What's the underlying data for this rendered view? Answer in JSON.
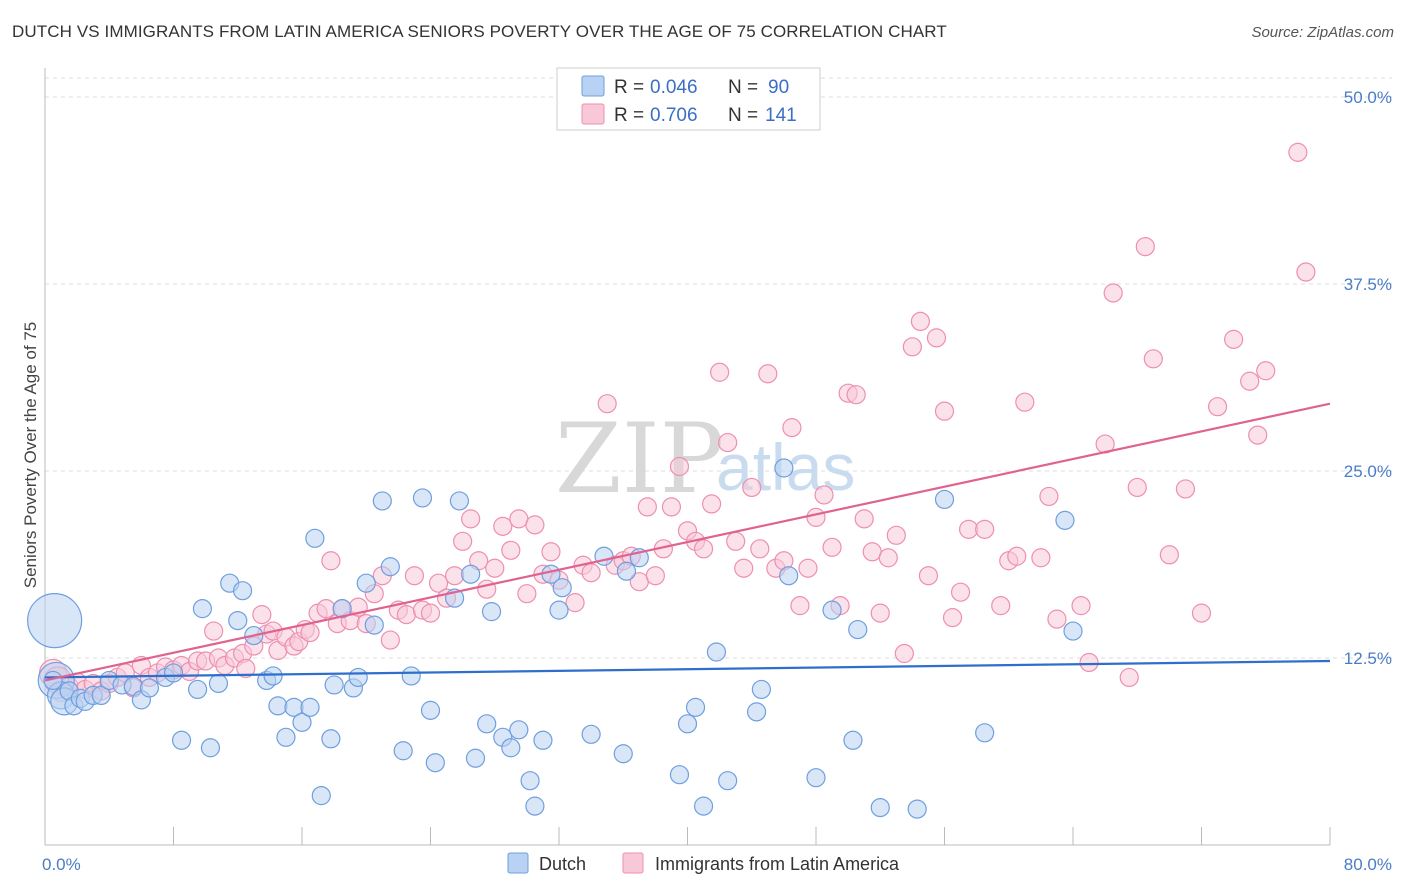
{
  "title": "DUTCH VS IMMIGRANTS FROM LATIN AMERICA SENIORS POVERTY OVER THE AGE OF 75 CORRELATION CHART",
  "source": "Source: ZipAtlas.com",
  "watermark": {
    "zip": "ZIP",
    "atlas": "atlas"
  },
  "colors": {
    "dutch": "#6f9fde",
    "dutch_fill": "#b9d2f3",
    "dutch_line": "#2f6fcc",
    "latin": "#ee8fb0",
    "latin_fill": "#f8c8d8",
    "latin_line": "#e0638f",
    "grid": "#dddddd",
    "tick_text": "#4a7cc7"
  },
  "legend": {
    "r_label": "R =",
    "n_label": "N =",
    "rows": [
      {
        "series": "Dutch",
        "r": "0.046",
        "n": "90"
      },
      {
        "series": "Immigrants from Latin America",
        "r": "0.706",
        "n": "141"
      }
    ]
  },
  "bottom_legend": [
    "Dutch",
    "Immigrants from Latin America"
  ],
  "chart_data": {
    "type": "scatter",
    "title": "DUTCH VS IMMIGRANTS FROM LATIN AMERICA SENIORS POVERTY OVER THE AGE OF 75 CORRELATION CHART",
    "xlabel": "",
    "ylabel": "Seniors Poverty Over the Age of 75",
    "xlim": [
      0,
      80
    ],
    "ylim": [
      0,
      50
    ],
    "x_tick_labels": [
      "0.0%",
      "80.0%"
    ],
    "y_ticks": [
      12.5,
      25.0,
      37.5,
      50.0
    ],
    "y_tick_labels": [
      "12.5%",
      "25.0%",
      "37.5%",
      "50.0%"
    ],
    "grid": "horizontal dashed",
    "legend_position": "top-center",
    "series": [
      {
        "name": "Dutch",
        "trend": {
          "x": [
            0,
            80
          ],
          "y": [
            11.2,
            12.3
          ]
        },
        "points": [
          [
            0.6,
            15.0,
            3
          ],
          [
            0.7,
            11.0,
            2
          ],
          [
            1.0,
            10.0,
            1.5
          ],
          [
            1.2,
            9.6,
            1.5
          ],
          [
            1.5,
            10.3,
            1
          ],
          [
            1.8,
            9.3,
            1
          ],
          [
            2.2,
            9.8,
            1
          ],
          [
            2.5,
            9.6,
            1
          ],
          [
            3.0,
            10.0,
            1
          ],
          [
            3.5,
            10.0,
            1
          ],
          [
            4.0,
            11.0,
            1
          ],
          [
            4.8,
            10.7,
            1
          ],
          [
            5.5,
            10.6,
            1
          ],
          [
            6.0,
            9.7,
            1
          ],
          [
            6.5,
            10.5,
            1
          ],
          [
            7.5,
            11.2,
            1
          ],
          [
            8.0,
            11.5,
            1
          ],
          [
            8.5,
            7.0,
            1
          ],
          [
            9.5,
            10.4,
            1
          ],
          [
            9.8,
            15.8,
            1
          ],
          [
            10.3,
            6.5,
            1
          ],
          [
            10.8,
            10.8,
            1
          ],
          [
            11.5,
            17.5,
            1
          ],
          [
            12.0,
            15.0,
            1
          ],
          [
            12.3,
            17.0,
            1
          ],
          [
            13.0,
            14.0,
            1
          ],
          [
            13.8,
            11.0,
            1
          ],
          [
            14.2,
            11.3,
            1
          ],
          [
            14.5,
            9.3,
            1
          ],
          [
            15.0,
            7.2,
            1
          ],
          [
            15.5,
            9.2,
            1
          ],
          [
            16.0,
            8.2,
            1
          ],
          [
            16.5,
            9.2,
            1
          ],
          [
            16.8,
            20.5,
            1
          ],
          [
            17.2,
            3.3,
            1
          ],
          [
            17.8,
            7.1,
            1
          ],
          [
            18.0,
            10.7,
            1
          ],
          [
            18.5,
            15.8,
            1
          ],
          [
            19.2,
            10.5,
            1
          ],
          [
            19.5,
            11.2,
            1
          ],
          [
            20.0,
            17.5,
            1
          ],
          [
            20.5,
            14.7,
            1
          ],
          [
            21.0,
            23.0,
            1
          ],
          [
            21.5,
            18.6,
            1
          ],
          [
            22.3,
            6.3,
            1
          ],
          [
            22.8,
            11.3,
            1
          ],
          [
            23.5,
            23.2,
            1
          ],
          [
            24.0,
            9.0,
            1
          ],
          [
            24.3,
            5.5,
            1
          ],
          [
            25.5,
            16.5,
            1
          ],
          [
            25.8,
            23.0,
            1
          ],
          [
            26.5,
            18.1,
            1
          ],
          [
            26.8,
            5.8,
            1
          ],
          [
            27.5,
            8.1,
            1
          ],
          [
            27.8,
            15.6,
            1
          ],
          [
            28.5,
            7.2,
            1
          ],
          [
            29.0,
            6.5,
            1
          ],
          [
            29.5,
            7.7,
            1
          ],
          [
            30.2,
            4.3,
            1
          ],
          [
            30.5,
            2.6,
            1
          ],
          [
            31.0,
            7.0,
            1
          ],
          [
            31.5,
            18.1,
            1
          ],
          [
            32.0,
            15.7,
            1
          ],
          [
            32.2,
            17.2,
            1
          ],
          [
            34.0,
            7.4,
            1
          ],
          [
            34.8,
            19.3,
            1
          ],
          [
            36.0,
            6.1,
            1
          ],
          [
            36.2,
            18.3,
            1
          ],
          [
            37.0,
            19.2,
            1
          ],
          [
            39.5,
            4.7,
            1
          ],
          [
            40.0,
            8.1,
            1
          ],
          [
            40.5,
            9.2,
            1
          ],
          [
            41.0,
            2.6,
            1
          ],
          [
            41.8,
            12.9,
            1
          ],
          [
            42.5,
            4.3,
            1
          ],
          [
            44.3,
            8.9,
            1
          ],
          [
            44.6,
            10.4,
            1
          ],
          [
            46.0,
            25.2,
            1
          ],
          [
            46.3,
            18.0,
            1
          ],
          [
            48.0,
            4.5,
            1
          ],
          [
            49.0,
            15.7,
            1
          ],
          [
            50.3,
            7.0,
            1
          ],
          [
            50.6,
            14.4,
            1
          ],
          [
            52.0,
            2.5,
            1
          ],
          [
            54.3,
            2.4,
            1
          ],
          [
            56.0,
            23.1,
            1
          ],
          [
            58.5,
            7.5,
            1
          ],
          [
            63.5,
            21.7,
            1
          ],
          [
            64.0,
            14.3,
            1
          ],
          [
            0.5,
            11.0,
            1
          ]
        ]
      },
      {
        "name": "Immigrants from Latin America",
        "trend": {
          "x": [
            0,
            80
          ],
          "y": [
            11.0,
            29.5
          ]
        },
        "points": [
          [
            0.5,
            11.5,
            1.5
          ],
          [
            0.8,
            11.0,
            1.5
          ],
          [
            1.0,
            10.2,
            1
          ],
          [
            1.5,
            10.6,
            1
          ],
          [
            2.0,
            10.9,
            1
          ],
          [
            2.5,
            10.4,
            1
          ],
          [
            3.0,
            10.8,
            1
          ],
          [
            3.5,
            10.3,
            1
          ],
          [
            4.0,
            10.8,
            1
          ],
          [
            4.5,
            11.2,
            1
          ],
          [
            5.0,
            11.5,
            1
          ],
          [
            5.5,
            10.5,
            1
          ],
          [
            6.0,
            12.0,
            1
          ],
          [
            6.5,
            11.2,
            1
          ],
          [
            7.0,
            11.5,
            1
          ],
          [
            7.5,
            11.9,
            1
          ],
          [
            8.0,
            11.7,
            1
          ],
          [
            8.5,
            12.0,
            1
          ],
          [
            9.0,
            11.6,
            1
          ],
          [
            9.5,
            12.3,
            1
          ],
          [
            10.0,
            12.3,
            1
          ],
          [
            10.5,
            14.3,
            1
          ],
          [
            10.8,
            12.5,
            1
          ],
          [
            11.2,
            12.0,
            1
          ],
          [
            11.8,
            12.5,
            1
          ],
          [
            12.3,
            12.8,
            1
          ],
          [
            12.5,
            11.8,
            1
          ],
          [
            13.0,
            13.3,
            1
          ],
          [
            13.5,
            15.4,
            1
          ],
          [
            13.8,
            14.1,
            1
          ],
          [
            14.2,
            14.3,
            1
          ],
          [
            14.5,
            13.0,
            1
          ],
          [
            15.0,
            13.9,
            1
          ],
          [
            15.5,
            13.3,
            1
          ],
          [
            15.8,
            13.6,
            1
          ],
          [
            16.2,
            14.4,
            1
          ],
          [
            16.5,
            14.2,
            1
          ],
          [
            17.0,
            15.5,
            1
          ],
          [
            17.5,
            15.8,
            1
          ],
          [
            17.8,
            19.0,
            1
          ],
          [
            18.2,
            14.8,
            1
          ],
          [
            18.5,
            15.8,
            1
          ],
          [
            19.0,
            15.0,
            1
          ],
          [
            19.5,
            15.9,
            1
          ],
          [
            20.0,
            14.8,
            1
          ],
          [
            20.5,
            16.8,
            1
          ],
          [
            21.0,
            18.0,
            1
          ],
          [
            21.5,
            13.7,
            1
          ],
          [
            22.0,
            15.7,
            1
          ],
          [
            22.5,
            15.4,
            1
          ],
          [
            23.0,
            18.0,
            1
          ],
          [
            23.5,
            15.7,
            1
          ],
          [
            24.0,
            15.5,
            1
          ],
          [
            24.5,
            17.5,
            1
          ],
          [
            25.0,
            16.5,
            1
          ],
          [
            25.5,
            18.0,
            1
          ],
          [
            26.0,
            20.3,
            1
          ],
          [
            26.5,
            21.8,
            1
          ],
          [
            27.0,
            19.0,
            1
          ],
          [
            27.5,
            17.1,
            1
          ],
          [
            28.0,
            18.5,
            1
          ],
          [
            28.5,
            21.3,
            1
          ],
          [
            29.0,
            19.7,
            1
          ],
          [
            29.5,
            21.8,
            1
          ],
          [
            30.0,
            16.8,
            1
          ],
          [
            30.5,
            21.4,
            1
          ],
          [
            31.0,
            18.1,
            1
          ],
          [
            31.5,
            19.6,
            1
          ],
          [
            32.0,
            17.7,
            1
          ],
          [
            33.0,
            16.2,
            1
          ],
          [
            33.5,
            18.7,
            1
          ],
          [
            34.0,
            18.2,
            1
          ],
          [
            35.0,
            29.5,
            1
          ],
          [
            35.5,
            18.7,
            1
          ],
          [
            36.0,
            19.0,
            1
          ],
          [
            36.5,
            19.3,
            1
          ],
          [
            37.0,
            17.6,
            1
          ],
          [
            37.5,
            22.6,
            1
          ],
          [
            38.0,
            18.0,
            1
          ],
          [
            38.5,
            19.8,
            1
          ],
          [
            39.0,
            22.6,
            1
          ],
          [
            39.5,
            25.3,
            1
          ],
          [
            40.0,
            21.0,
            1
          ],
          [
            40.5,
            20.3,
            1
          ],
          [
            41.0,
            19.8,
            1
          ],
          [
            41.5,
            22.8,
            1
          ],
          [
            42.0,
            31.6,
            1
          ],
          [
            42.5,
            26.9,
            1
          ],
          [
            43.0,
            20.3,
            1
          ],
          [
            43.5,
            18.5,
            1
          ],
          [
            44.0,
            23.9,
            1
          ],
          [
            44.5,
            19.8,
            1
          ],
          [
            45.0,
            31.5,
            1
          ],
          [
            45.5,
            18.5,
            1
          ],
          [
            46.0,
            19.0,
            1
          ],
          [
            46.5,
            27.9,
            1
          ],
          [
            47.0,
            16.0,
            1
          ],
          [
            47.5,
            18.5,
            1
          ],
          [
            48.0,
            21.9,
            1
          ],
          [
            48.5,
            23.4,
            1
          ],
          [
            49.0,
            19.9,
            1
          ],
          [
            49.5,
            16.0,
            1
          ],
          [
            50.0,
            30.2,
            1
          ],
          [
            50.5,
            30.1,
            1
          ],
          [
            51.0,
            21.8,
            1
          ],
          [
            51.5,
            19.6,
            1
          ],
          [
            52.0,
            15.5,
            1
          ],
          [
            52.5,
            19.2,
            1
          ],
          [
            53.0,
            20.7,
            1
          ],
          [
            53.5,
            12.8,
            1
          ],
          [
            54.0,
            33.3,
            1
          ],
          [
            54.5,
            35.0,
            1
          ],
          [
            55.0,
            18.0,
            1
          ],
          [
            55.5,
            33.9,
            1
          ],
          [
            56.0,
            29.0,
            1
          ],
          [
            56.5,
            15.2,
            1
          ],
          [
            57.0,
            16.9,
            1
          ],
          [
            57.5,
            21.1,
            1
          ],
          [
            58.5,
            21.1,
            1
          ],
          [
            59.5,
            16.0,
            1
          ],
          [
            60.0,
            19.0,
            1
          ],
          [
            60.5,
            19.3,
            1
          ],
          [
            61.0,
            29.6,
            1
          ],
          [
            62.0,
            19.2,
            1
          ],
          [
            62.5,
            23.3,
            1
          ],
          [
            63.0,
            15.1,
            1
          ],
          [
            64.5,
            16.0,
            1
          ],
          [
            65.0,
            12.2,
            1
          ],
          [
            66.0,
            26.8,
            1
          ],
          [
            66.5,
            36.9,
            1
          ],
          [
            67.5,
            11.2,
            1
          ],
          [
            68.0,
            23.9,
            1
          ],
          [
            68.5,
            40.0,
            1
          ],
          [
            69.0,
            32.5,
            1
          ],
          [
            70.0,
            19.4,
            1
          ],
          [
            71.0,
            23.8,
            1
          ],
          [
            72.0,
            15.5,
            1
          ],
          [
            73.0,
            29.3,
            1
          ],
          [
            74.0,
            33.8,
            1
          ],
          [
            75.0,
            31.0,
            1
          ],
          [
            75.5,
            27.4,
            1
          ],
          [
            76.0,
            31.7,
            1
          ],
          [
            78.0,
            46.3,
            1
          ],
          [
            78.5,
            38.3,
            1
          ]
        ]
      }
    ]
  }
}
